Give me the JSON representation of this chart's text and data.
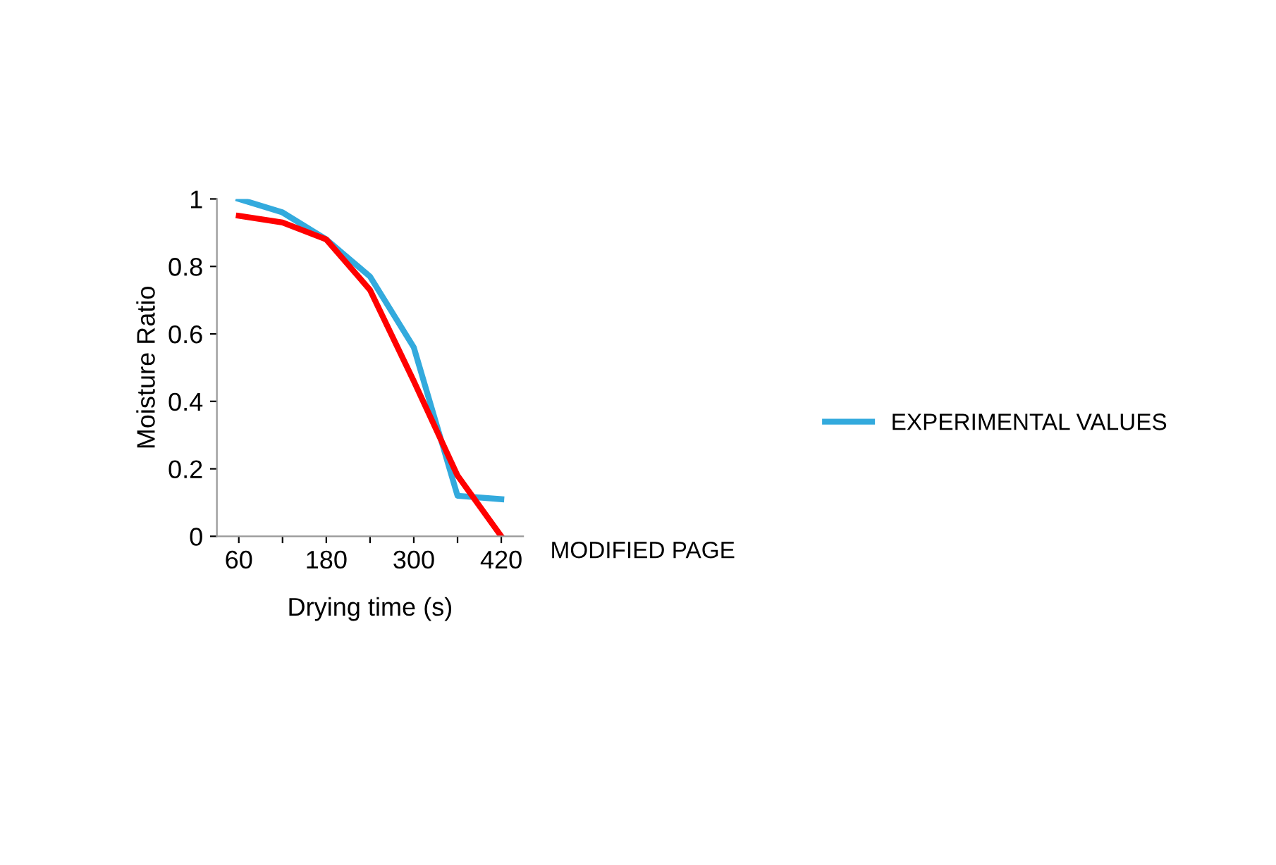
{
  "chart_data": {
    "type": "line",
    "xlabel": "Drying time (s)",
    "ylabel": "Moisture Ratio",
    "categories": [
      "60",
      null,
      "180",
      null,
      "300",
      null,
      "420"
    ],
    "series": [
      {
        "name": "EXPERIMENTAL VALUES",
        "color": "#33aadd",
        "values": [
          1.0,
          0.96,
          0.88,
          0.77,
          0.56,
          0.12,
          0.11
        ]
      },
      {
        "name": "MODIFIED PAGE",
        "color": "#ff0000",
        "values": [
          0.95,
          0.93,
          0.88,
          0.73,
          0.46,
          0.18,
          0.0
        ]
      }
    ],
    "ylim": [
      0,
      1
    ],
    "yticks": [
      0,
      0.2,
      0.4,
      0.6,
      0.8,
      1
    ],
    "grid": false,
    "legend": "right",
    "marker": "none",
    "line_style": "solid"
  }
}
